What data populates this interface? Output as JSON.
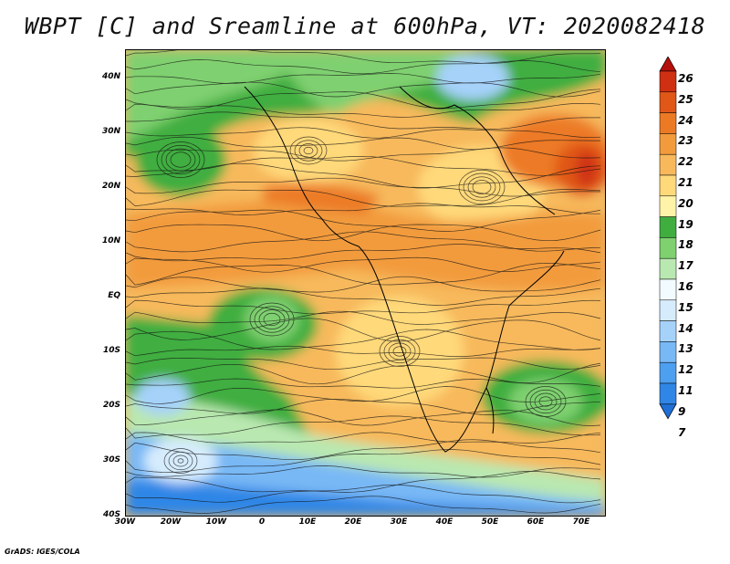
{
  "title": "WBPT [C] and Sreamline at 600hPa, VT: 2020082418",
  "footer": "GrADS: IGES/COLA",
  "axes": {
    "lat_ticks": [
      "40N",
      "30N",
      "20N",
      "10N",
      "EQ",
      "10S",
      "20S",
      "30S",
      "40S"
    ],
    "lon_ticks": [
      "30W",
      "20W",
      "10W",
      "0",
      "10E",
      "20E",
      "30E",
      "40E",
      "50E",
      "60E",
      "70E"
    ]
  },
  "colorbar": {
    "levels": [
      "7",
      "9",
      "11",
      "12",
      "13",
      "14",
      "15",
      "16",
      "17",
      "18",
      "19",
      "20",
      "21",
      "22",
      "23",
      "24",
      "25",
      "26"
    ],
    "colors": [
      "#1f6fd6",
      "#2f86e6",
      "#4d9ff0",
      "#78b8f5",
      "#a6d2fa",
      "#d6ecfd",
      "#f2fbff",
      "#b9e8b0",
      "#7fd06f",
      "#3fae3f",
      "#fff3a8",
      "#ffd97a",
      "#f7b95c",
      "#f29b3c",
      "#ec7a25",
      "#e05718",
      "#cf3012",
      "#b4100b"
    ]
  },
  "map": {
    "field": "wet-bulb potential temperature",
    "pressure_level_hpa": 600,
    "valid_time": "2020082418",
    "lon_range": [
      -30,
      75
    ],
    "lat_range": [
      -40,
      45
    ]
  }
}
